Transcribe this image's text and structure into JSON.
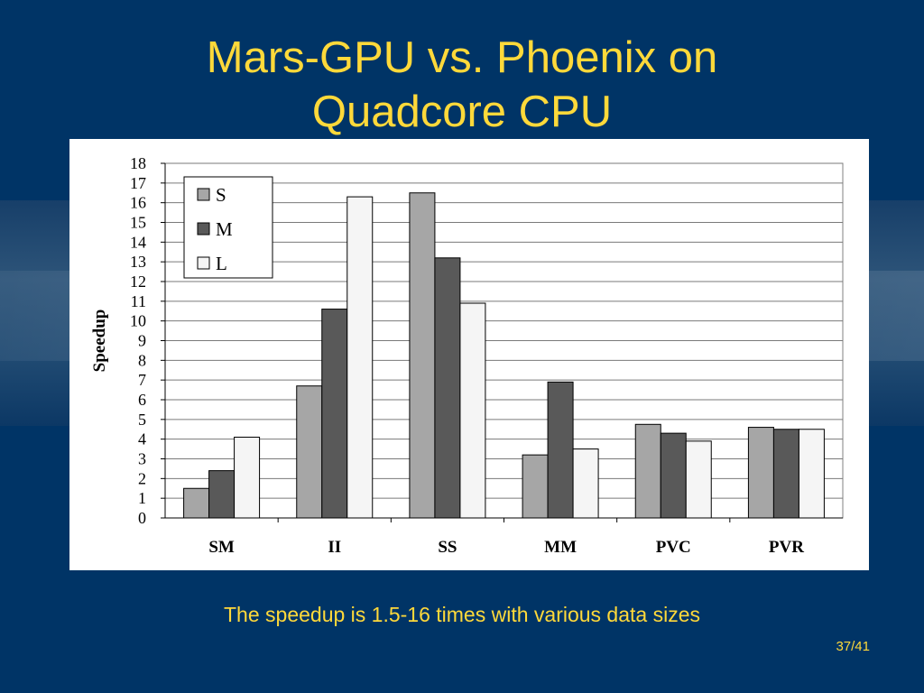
{
  "slide": {
    "title_line1": "Mars-GPU vs. Phoenix on",
    "title_line2": "Quadcore CPU",
    "caption": "The speedup is 1.5-16 times with various data sizes",
    "page_number": "37/41"
  },
  "colors": {
    "background": "#003466",
    "title": "#ffd93a",
    "series_S": "#a6a6a6",
    "series_M": "#595959",
    "series_L": "#f5f5f5"
  },
  "chart_data": {
    "type": "bar",
    "title": "",
    "xlabel": "",
    "ylabel": "Speedup",
    "ylim": [
      0,
      18
    ],
    "yticks": [
      "0",
      "1",
      "2",
      "3",
      "4",
      "5",
      "6",
      "7",
      "8",
      "9",
      "10",
      "11",
      "12",
      "13",
      "14",
      "15",
      "16",
      "17",
      "18"
    ],
    "grid": true,
    "legend_position": "top-left",
    "categories": [
      "SM",
      "II",
      "SS",
      "MM",
      "PVC",
      "PVR"
    ],
    "series": [
      {
        "name": "S",
        "color": "#a6a6a6",
        "values": [
          1.5,
          6.7,
          16.5,
          3.2,
          4.75,
          4.6
        ]
      },
      {
        "name": "M",
        "color": "#595959",
        "values": [
          2.4,
          10.6,
          13.2,
          6.9,
          4.3,
          4.5
        ]
      },
      {
        "name": "L",
        "color": "#f5f5f5",
        "values": [
          4.1,
          16.3,
          10.9,
          3.5,
          3.9,
          4.5
        ]
      }
    ]
  }
}
